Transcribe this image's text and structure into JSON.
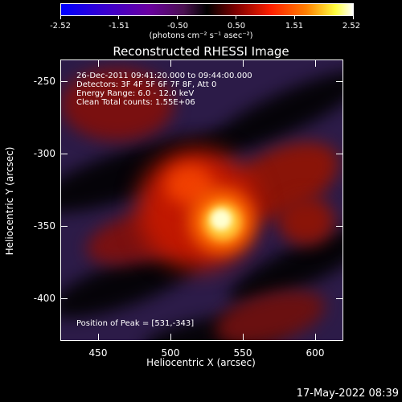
{
  "colorbar": {
    "ticks": [
      "-2.52",
      "-1.51",
      "-0.50",
      "0.50",
      "1.51",
      "2.52"
    ],
    "units": "(photons cm⁻² s⁻¹ asec⁻²)"
  },
  "title": "Reconstructed RHESSI Image",
  "annotations": {
    "time": "26-Dec-2011 09:41:20.000 to 09:44:00.000",
    "detectors": "Detectors: 3F 4F 5F 6F 7F 8F, Att 0",
    "energy": "Energy Range: 6.0 - 12.0 keV",
    "clean": "Clean    Total counts: 1.55E+06",
    "peak": "Position of Peak = [531,-343]"
  },
  "axes": {
    "x_label": "Heliocentric X (arcsec)",
    "y_label": "Heliocentric Y (arcsec)",
    "x_ticks": [
      "450",
      "500",
      "550",
      "600"
    ],
    "y_ticks": [
      "-250",
      "-300",
      "-350",
      "-400"
    ]
  },
  "footer_date": "17-May-2022 08:39",
  "colors": {
    "map_background": "#2c1b48",
    "peak": "#ffffd0"
  }
}
